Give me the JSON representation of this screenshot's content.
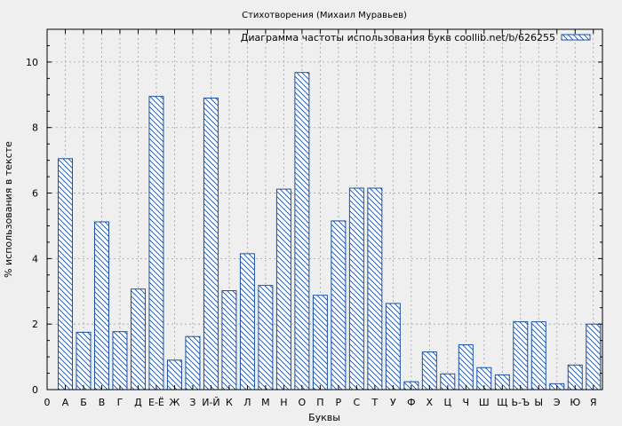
{
  "chart_data": {
    "type": "bar",
    "title": "Стихотворения (Михаил Муравьев)",
    "xlabel": "Буквы",
    "ylabel": "% использования в тексте",
    "legend": "Диаграмма частоты использования букв coollib.net/b/626255",
    "legend_position": "top-right",
    "grid": true,
    "ylim": [
      0,
      11
    ],
    "yticks": [
      0,
      2,
      4,
      6,
      8,
      10
    ],
    "x_start_label": "0",
    "categories": [
      "А",
      "Б",
      "В",
      "Г",
      "Д",
      "Е-Ё",
      "Ж",
      "З",
      "И-Й",
      "К",
      "Л",
      "М",
      "Н",
      "О",
      "П",
      "Р",
      "С",
      "Т",
      "У",
      "Ф",
      "Х",
      "Ц",
      "Ч",
      "Ш",
      "Щ",
      "Ь-Ъ",
      "Ы",
      "Э",
      "Ю",
      "Я"
    ],
    "values": [
      7.05,
      1.75,
      5.12,
      1.77,
      3.07,
      8.95,
      0.9,
      1.62,
      8.9,
      3.02,
      4.15,
      3.18,
      6.12,
      9.68,
      2.88,
      5.15,
      6.15,
      6.15,
      2.63,
      0.24,
      1.15,
      0.48,
      1.37,
      0.67,
      0.45,
      2.07,
      2.07,
      0.18,
      0.75,
      2.0
    ],
    "bar_color": "#1a4fa0",
    "background_color": "#efefef",
    "grid_color": "#a0a0a0"
  }
}
